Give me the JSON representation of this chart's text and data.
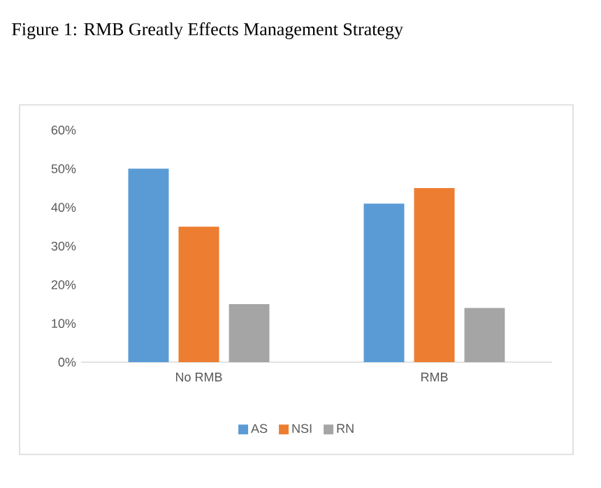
{
  "chart_data": {
    "type": "bar",
    "title": "Figure 1: RMB Greatly Effects Management Strategy",
    "categories": [
      "No RMB",
      "RMB"
    ],
    "series": [
      {
        "name": "AS",
        "color": "#5b9bd5",
        "values": [
          50,
          41
        ]
      },
      {
        "name": "NSI",
        "color": "#ed7d31",
        "values": [
          35,
          45
        ]
      },
      {
        "name": "RN",
        "color": "#a5a5a5",
        "values": [
          15,
          14
        ]
      }
    ],
    "ylim": [
      0,
      60
    ],
    "yticks": [
      {
        "value": 0,
        "label": "0%"
      },
      {
        "value": 10,
        "label": "10%"
      },
      {
        "value": 20,
        "label": "20%"
      },
      {
        "value": 30,
        "label": "30%"
      },
      {
        "value": 40,
        "label": "40%"
      },
      {
        "value": 50,
        "label": "50%"
      },
      {
        "value": 60,
        "label": "60%"
      }
    ],
    "legend": "bottom"
  }
}
